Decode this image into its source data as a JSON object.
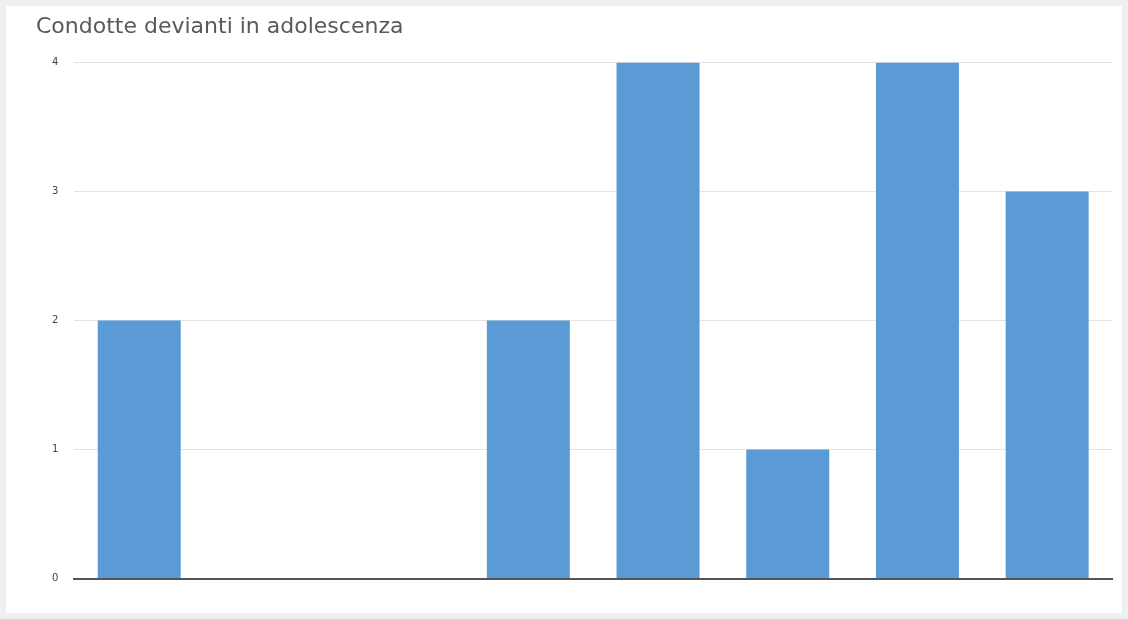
{
  "chart_data": {
    "type": "bar",
    "title": "Condotte devianti in adolescenza",
    "categories": [
      null,
      null,
      null,
      null,
      null,
      null,
      null,
      null
    ],
    "values": [
      2,
      0,
      0,
      2,
      4,
      1,
      4,
      3
    ],
    "color": "#5b9bd5",
    "ylim": [
      0,
      4
    ],
    "yticks": [
      0,
      1,
      2,
      3,
      4
    ],
    "grid": "y",
    "legend": false
  }
}
